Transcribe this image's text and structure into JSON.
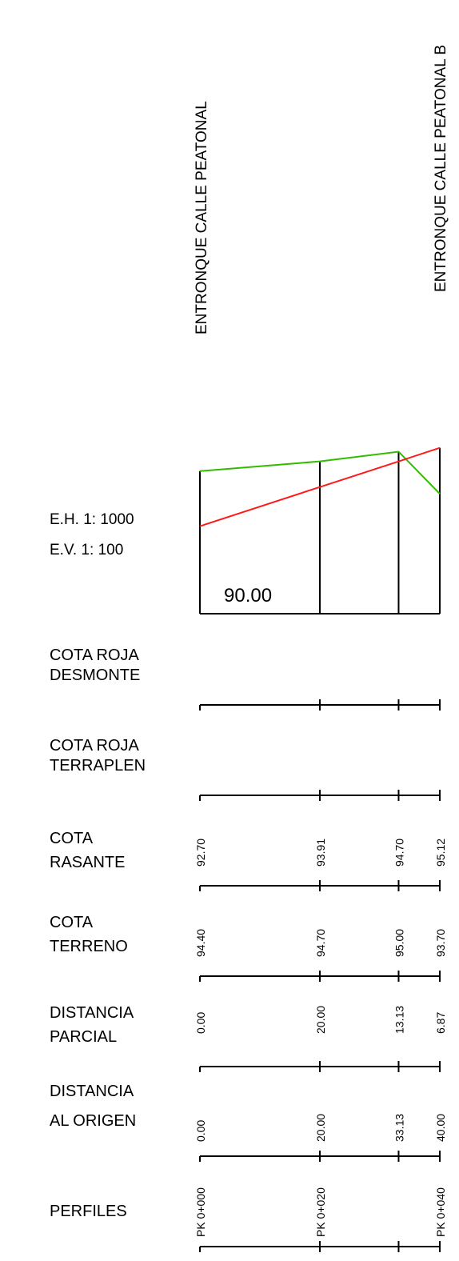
{
  "scales": {
    "horizontal": "E.H. 1: 1000",
    "vertical": "E.V. 1: 100"
  },
  "datum": "90.00",
  "junctions": {
    "left": "ENTRONQUE CALLE PEATONAL",
    "right": "ENTRONQUE CALLE PEATONAL B"
  },
  "colors": {
    "terreno": "#33bb00",
    "rasante": "#ff1a1a",
    "lines": "#000000"
  },
  "rows": {
    "cota_roja_desmonte": [
      "COTA ROJA",
      "DESMONTE"
    ],
    "cota_roja_terraplen": [
      "COTA ROJA",
      "TERRAPLEN"
    ],
    "cota_rasante": [
      "COTA",
      "RASANTE"
    ],
    "cota_terreno": [
      "COTA",
      "TERRENO"
    ],
    "distancia_parcial": [
      "DISTANCIA",
      "PARCIAL"
    ],
    "distancia_origen": [
      "DISTANCIA",
      "AL ORIGEN"
    ],
    "perfiles": [
      "PERFILES"
    ]
  },
  "chart_data": {
    "type": "line",
    "x_label": "DISTANCIA AL ORIGEN",
    "y_datum": 90.0,
    "stations": [
      {
        "dist_origen": "0.00",
        "dist_parcial": "0.00",
        "rasante": "92.70",
        "terreno": "94.40",
        "pk": "PK 0+000"
      },
      {
        "dist_origen": "20.00",
        "dist_parcial": "20.00",
        "rasante": "93.91",
        "terreno": "94.70",
        "pk": "PK 0+020"
      },
      {
        "dist_origen": "33.13",
        "dist_parcial": "13.13",
        "rasante": "94.70",
        "terreno": "95.00",
        "pk": ""
      },
      {
        "dist_origen": "40.00",
        "dist_parcial": "6.87",
        "rasante": "95.12",
        "terreno": "93.70",
        "pk": "PK 0+040"
      }
    ],
    "series": [
      {
        "key": "terreno",
        "color": "#33bb00"
      },
      {
        "key": "rasante",
        "color": "#ff1a1a"
      }
    ]
  }
}
